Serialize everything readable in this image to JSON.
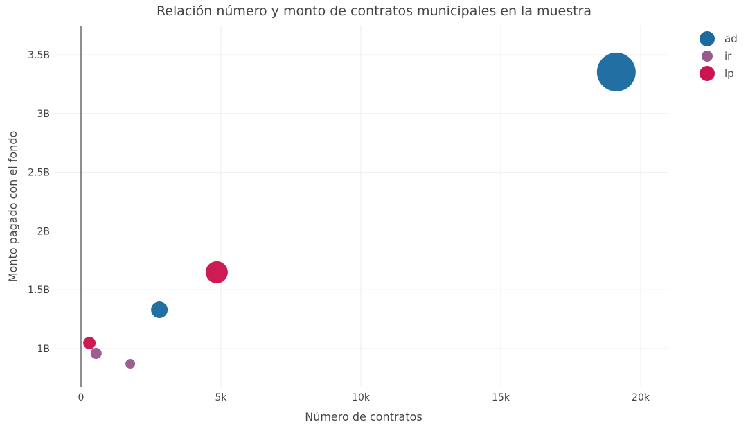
{
  "chart_data": {
    "type": "scatter",
    "title": "Relación número y monto de contratos municipales en la muestra",
    "xlabel": "Número de contratos",
    "ylabel": "Monto pagado con el fondo",
    "xlim": [
      -500,
      21300
    ],
    "ylim": [
      0.72,
      3.75
    ],
    "x_ticks": [
      {
        "value": 0,
        "label": "0"
      },
      {
        "value": 5000,
        "label": "5k"
      },
      {
        "value": 10000,
        "label": "10k"
      },
      {
        "value": 15000,
        "label": "15k"
      },
      {
        "value": 20000,
        "label": "20k"
      }
    ],
    "y_ticks": [
      {
        "value": 1,
        "label": "1B"
      },
      {
        "value": 1.5,
        "label": "1.5B"
      },
      {
        "value": 2,
        "label": "2B"
      },
      {
        "value": 2.5,
        "label": "2.5B"
      },
      {
        "value": 3,
        "label": "3B"
      },
      {
        "value": 3.5,
        "label": "3.5B"
      }
    ],
    "y_unit": "billions",
    "grid": true,
    "legend_position": "top-right",
    "series": [
      {
        "name": "ad",
        "color": "#1b6aa0",
        "points": [
          {
            "x": 19130,
            "y": 3.353,
            "size": 28
          },
          {
            "x": 2800,
            "y": 1.33,
            "size": 12
          }
        ]
      },
      {
        "name": "ir",
        "color": "#9a5a8e",
        "points": [
          {
            "x": 540,
            "y": 0.959,
            "size": 8
          },
          {
            "x": 1760,
            "y": 0.87,
            "size": 7
          }
        ]
      },
      {
        "name": "lp",
        "color": "#cc1450",
        "points": [
          {
            "x": 4850,
            "y": 1.649,
            "size": 16
          },
          {
            "x": 300,
            "y": 1.047,
            "size": 9
          }
        ]
      }
    ]
  }
}
